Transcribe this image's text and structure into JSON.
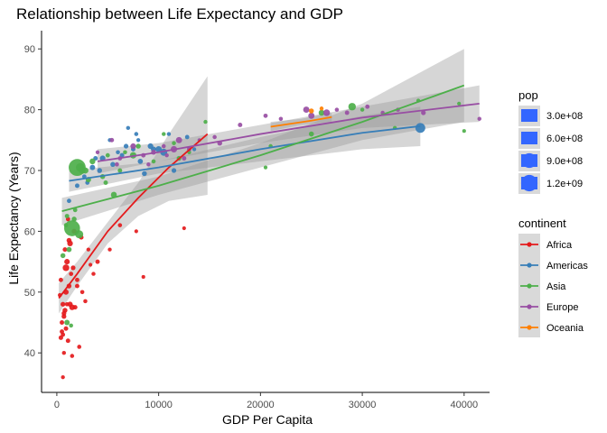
{
  "chart_data": {
    "type": "scatter",
    "title": "Relationship between Life Expectancy and GDP",
    "xlabel": "GDP Per Capita",
    "ylabel": "Life Expectancy (Years)",
    "xlim": [
      -1500,
      42500
    ],
    "ylim": [
      33.5,
      93
    ],
    "xticks": [
      0,
      10000,
      20000,
      30000,
      40000
    ],
    "yticks": [
      40,
      50,
      60,
      70,
      80,
      90
    ],
    "grid": false,
    "legend_position": "right",
    "size_legend": {
      "title": "pop",
      "labels": [
        "3.0e+08",
        "6.0e+08",
        "9.0e+08",
        "1.2e+09"
      ],
      "values": [
        300000000,
        600000000,
        900000000,
        1200000000
      ]
    },
    "color_legend": {
      "title": "continent",
      "labels": [
        "Africa",
        "Americas",
        "Asia",
        "Europe",
        "Oceania"
      ]
    },
    "colors": {
      "Africa": "#E41A1C",
      "Americas": "#377EB8",
      "Asia": "#4DAF4A",
      "Europe": "#984EA3",
      "Oceania": "#FF7F00",
      "size_legend": "#3366FF",
      "ribbon": "#999999"
    },
    "series": [
      {
        "name": "Africa",
        "points": [
          [
            400,
            42.5
          ],
          [
            600,
            43
          ],
          [
            500,
            45
          ],
          [
            700,
            46
          ],
          [
            800,
            47
          ],
          [
            1000,
            48
          ],
          [
            300,
            49.5
          ],
          [
            900,
            50
          ],
          [
            1200,
            51
          ],
          [
            1500,
            47.5
          ],
          [
            600,
            36
          ],
          [
            700,
            40
          ],
          [
            1100,
            42
          ],
          [
            1800,
            47.5
          ],
          [
            2200,
            41
          ],
          [
            1300,
            48
          ],
          [
            2000,
            52
          ],
          [
            1600,
            54
          ],
          [
            1000,
            55
          ],
          [
            800,
            57
          ],
          [
            1200,
            58.5
          ],
          [
            400,
            52
          ],
          [
            1400,
            53
          ],
          [
            2800,
            48.5
          ],
          [
            3600,
            53
          ],
          [
            4000,
            55
          ],
          [
            5200,
            57
          ],
          [
            6200,
            61
          ],
          [
            3300,
            54.5
          ],
          [
            7800,
            60
          ],
          [
            8500,
            52.5
          ],
          [
            12500,
            60.5
          ],
          [
            1100,
            62
          ],
          [
            2400,
            59
          ],
          [
            500,
            43.5
          ],
          [
            700,
            46.5
          ],
          [
            900,
            44
          ],
          [
            1500,
            39.5
          ],
          [
            2500,
            50
          ],
          [
            3100,
            57
          ],
          [
            900,
            54
          ],
          [
            1300,
            58
          ],
          [
            1700,
            60
          ],
          [
            2000,
            51
          ],
          [
            600,
            48
          ]
        ],
        "pops": [
          12000000,
          8000000,
          10000000,
          15000000,
          20000000,
          6000000,
          5000000,
          30000000,
          18000000,
          40000000,
          3000000,
          4000000,
          10000000,
          12000000,
          6000000,
          25000000,
          8000000,
          15000000,
          35000000,
          12000000,
          20000000,
          9000000,
          7000000,
          5000000,
          4000000,
          10000000,
          3000000,
          6000000,
          2000000,
          2000000,
          1500000,
          2000000,
          8000000,
          12000000,
          9000000,
          14000000,
          11000000,
          5000000,
          6000000,
          3000000,
          80000000,
          40000000,
          20000000,
          10000000,
          16000000
        ],
        "trend": [
          [
            200,
            49
          ],
          [
            2000,
            53
          ],
          [
            5000,
            60
          ],
          [
            8000,
            65.5
          ],
          [
            11000,
            70.5
          ],
          [
            14800,
            76
          ]
        ],
        "ribbon_upper": [
          [
            200,
            51.5
          ],
          [
            2000,
            55
          ],
          [
            5000,
            61.5
          ],
          [
            8000,
            68
          ],
          [
            11000,
            76
          ],
          [
            14800,
            85.5
          ]
        ],
        "ribbon_lower": [
          [
            200,
            46.5
          ],
          [
            2000,
            51
          ],
          [
            5000,
            58
          ],
          [
            8000,
            62.5
          ],
          [
            11000,
            65
          ],
          [
            14800,
            66
          ]
        ]
      },
      {
        "name": "Americas",
        "points": [
          [
            2000,
            67.5
          ],
          [
            2700,
            69
          ],
          [
            3500,
            70.5
          ],
          [
            3800,
            72
          ],
          [
            4500,
            72
          ],
          [
            5500,
            71
          ],
          [
            6000,
            73
          ],
          [
            6800,
            74
          ],
          [
            7000,
            77
          ],
          [
            7500,
            73.5
          ],
          [
            8000,
            75
          ],
          [
            8200,
            71.5
          ],
          [
            8600,
            69.5
          ],
          [
            9200,
            74
          ],
          [
            9500,
            73.5
          ],
          [
            10500,
            73
          ],
          [
            11000,
            76
          ],
          [
            11500,
            70
          ],
          [
            12800,
            75.5
          ],
          [
            13500,
            73.5
          ],
          [
            3000,
            68
          ],
          [
            5200,
            75
          ],
          [
            10000,
            73.5
          ],
          [
            7800,
            76
          ],
          [
            35700,
            77
          ],
          [
            1200,
            65
          ],
          [
            6400,
            72.5
          ],
          [
            4200,
            70
          ]
        ],
        "pops": [
          10000000,
          8000000,
          30000000,
          12000000,
          40000000,
          20000000,
          5000000,
          15000000,
          4000000,
          10000000,
          3000000,
          25000000,
          20000000,
          40000000,
          30000000,
          100000000,
          4000000,
          15000000,
          8000000,
          3000000,
          7000000,
          3500000,
          60000000,
          5000000,
          300000000,
          8000000,
          12000000,
          20000000
        ],
        "trend": [
          [
            1200,
            68.3
          ],
          [
            10000,
            70.5
          ],
          [
            20000,
            73.5
          ],
          [
            30000,
            76.2
          ],
          [
            35700,
            77.3
          ]
        ],
        "ribbon_upper": [
          [
            1200,
            70
          ],
          [
            10000,
            71.5
          ],
          [
            20000,
            75.5
          ],
          [
            30000,
            79
          ],
          [
            35700,
            80.5
          ]
        ],
        "ribbon_lower": [
          [
            1200,
            66.5
          ],
          [
            10000,
            69.5
          ],
          [
            20000,
            71.5
          ],
          [
            30000,
            73.5
          ],
          [
            35700,
            74
          ]
        ]
      },
      {
        "name": "Asia",
        "points": [
          [
            1500,
            60.5
          ],
          [
            1700,
            62
          ],
          [
            1000,
            62.5
          ],
          [
            900,
            61
          ],
          [
            2000,
            70.5
          ],
          [
            2300,
            70.5
          ],
          [
            2500,
            70
          ],
          [
            2800,
            70
          ],
          [
            3100,
            68.5
          ],
          [
            4500,
            69
          ],
          [
            5600,
            66
          ],
          [
            6200,
            70
          ],
          [
            5000,
            72.5
          ],
          [
            6700,
            73
          ],
          [
            8000,
            74
          ],
          [
            9500,
            71.5
          ],
          [
            10500,
            76
          ],
          [
            12000,
            72
          ],
          [
            13000,
            73
          ],
          [
            14600,
            78
          ],
          [
            20500,
            70.5
          ],
          [
            21000,
            74
          ],
          [
            25000,
            76
          ],
          [
            29000,
            80.5
          ],
          [
            30000,
            80
          ],
          [
            35500,
            81.5
          ],
          [
            39500,
            81
          ],
          [
            40000,
            76.5
          ],
          [
            1200,
            57
          ],
          [
            600,
            56
          ],
          [
            1800,
            63.5
          ],
          [
            2200,
            59.5
          ],
          [
            1000,
            45
          ],
          [
            1400,
            44.5
          ],
          [
            3500,
            71.5
          ],
          [
            4800,
            68
          ],
          [
            7500,
            72.5
          ],
          [
            11500,
            74.5
          ],
          [
            26000,
            79.5
          ],
          [
            33200,
            77
          ]
        ],
        "pops": [
          1100000000,
          20000000,
          10000000,
          8000000,
          1300000000,
          200000000,
          80000000,
          60000000,
          30000000,
          20000000,
          50000000,
          10000000,
          8000000,
          5000000,
          20000000,
          6000000,
          4000000,
          15000000,
          3000000,
          3000000,
          2000000,
          5000000,
          23000000,
          127000000,
          4000000,
          3000000,
          2000000,
          1500000,
          25000000,
          20000000,
          8000000,
          160000000,
          30000000,
          5000000,
          45000000,
          10000000,
          70000000,
          5000000,
          48000000,
          4500000
        ],
        "trend": [
          [
            500,
            63.3
          ],
          [
            10000,
            67.5
          ],
          [
            20000,
            72.5
          ],
          [
            30000,
            78
          ],
          [
            40000,
            84
          ]
        ],
        "ribbon_upper": [
          [
            500,
            65.5
          ],
          [
            10000,
            69
          ],
          [
            20000,
            74.5
          ],
          [
            30000,
            81
          ],
          [
            40000,
            90
          ]
        ],
        "ribbon_lower": [
          [
            500,
            61
          ],
          [
            10000,
            66
          ],
          [
            20000,
            70.5
          ],
          [
            30000,
            75
          ],
          [
            40000,
            78
          ]
        ]
      },
      {
        "name": "Europe",
        "points": [
          [
            5400,
            75
          ],
          [
            6200,
            72
          ],
          [
            7500,
            74
          ],
          [
            8500,
            72.5
          ],
          [
            9500,
            73
          ],
          [
            10500,
            74
          ],
          [
            12000,
            75
          ],
          [
            13000,
            73.5
          ],
          [
            15500,
            75.5
          ],
          [
            18000,
            77.5
          ],
          [
            20500,
            79
          ],
          [
            22000,
            78.5
          ],
          [
            24500,
            80
          ],
          [
            25000,
            79
          ],
          [
            26500,
            79.5
          ],
          [
            27500,
            80
          ],
          [
            28500,
            79.5
          ],
          [
            30500,
            80.5
          ],
          [
            32000,
            79.5
          ],
          [
            33500,
            80
          ],
          [
            36000,
            79.5
          ],
          [
            41500,
            78.5
          ],
          [
            16000,
            74.5
          ],
          [
            12500,
            72
          ],
          [
            10800,
            72.5
          ],
          [
            4000,
            73
          ],
          [
            5900,
            71
          ],
          [
            9000,
            71
          ],
          [
            11500,
            73.5
          ],
          [
            14000,
            75
          ]
        ],
        "pops": [
          10000000,
          8000000,
          40000000,
          10000000,
          20000000,
          5000000,
          60000000,
          10000000,
          5000000,
          10000000,
          8000000,
          5000000,
          60000000,
          60000000,
          80000000,
          5000000,
          9000000,
          8000000,
          4000000,
          5000000,
          16000000,
          4000000,
          20000000,
          10000000,
          4000000,
          3000000,
          7000000,
          4000000,
          70000000,
          2000000
        ],
        "trend": [
          [
            4000,
            71.5
          ],
          [
            10000,
            73
          ],
          [
            20000,
            76
          ],
          [
            30000,
            78.7
          ],
          [
            41500,
            81
          ]
        ],
        "ribbon_upper": [
          [
            4000,
            73.5
          ],
          [
            10000,
            74.5
          ],
          [
            20000,
            77.5
          ],
          [
            30000,
            80.5
          ],
          [
            41500,
            84
          ]
        ],
        "ribbon_lower": [
          [
            4000,
            69.5
          ],
          [
            10000,
            71.5
          ],
          [
            20000,
            74.5
          ],
          [
            30000,
            77
          ],
          [
            41500,
            78
          ]
        ]
      },
      {
        "name": "Oceania",
        "points": [
          [
            25000,
            79.8
          ],
          [
            26000,
            80.2
          ]
        ],
        "pops": [
          20000000,
          4000000
        ],
        "trend": [
          [
            21000,
            77.2
          ],
          [
            23000,
            77.7
          ],
          [
            25000,
            78.2
          ],
          [
            27000,
            78.8
          ]
        ],
        "ribbon_upper": [
          [
            21000,
            78
          ],
          [
            24000,
            78.5
          ],
          [
            27000,
            79.5
          ]
        ],
        "ribbon_lower": [
          [
            21000,
            76.5
          ],
          [
            24000,
            77.5
          ],
          [
            27000,
            78
          ]
        ]
      }
    ]
  }
}
